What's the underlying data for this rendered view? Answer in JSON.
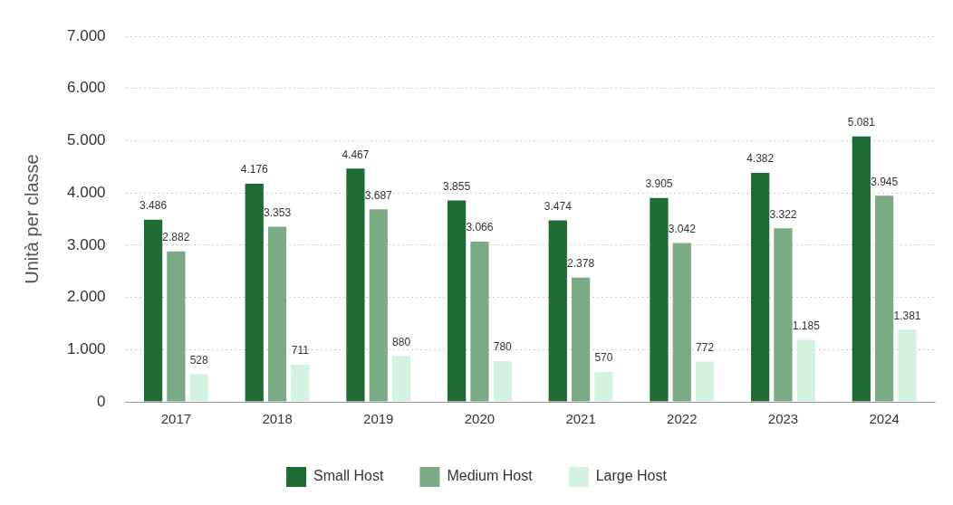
{
  "chart_data": {
    "type": "bar",
    "ylabel": "Unità per classe",
    "categories": [
      "2017",
      "2018",
      "2019",
      "2020",
      "2021",
      "2022",
      "2023",
      "2024"
    ],
    "series": [
      {
        "name": "Small Host",
        "color": "#1e6b34",
        "values": [
          3486,
          4176,
          4467,
          3855,
          3474,
          3905,
          4382,
          5081
        ],
        "value_labels": [
          "3.486",
          "4.176",
          "4.467",
          "3.855",
          "3.474",
          "3.905",
          "4.382",
          "5.081"
        ]
      },
      {
        "name": "Medium Host",
        "color": "#7aab84",
        "values": [
          2882,
          3353,
          3687,
          3066,
          2378,
          3042,
          3322,
          3945
        ],
        "value_labels": [
          "2.882",
          "3.353",
          "3.687",
          "3.066",
          "2.378",
          "3.042",
          "3.322",
          "3.945"
        ]
      },
      {
        "name": "Large Host",
        "color": "#d3f2e0",
        "values": [
          528,
          711,
          880,
          780,
          570,
          772,
          1185,
          1381
        ],
        "value_labels": [
          "528",
          "711",
          "880",
          "780",
          "570",
          "772",
          "1.185",
          "1.381"
        ]
      }
    ],
    "ylim": [
      0,
      7000
    ],
    "yticks": [
      0,
      {
        "value": 1000,
        "label": "1.000"
      },
      {
        "value": 2000,
        "label": "2.000"
      },
      {
        "value": 3000,
        "label": "3.000"
      },
      {
        "value": 4000,
        "label": "4.000"
      },
      {
        "value": 5000,
        "label": "5.000"
      },
      {
        "value": 6000,
        "label": "6.000"
      },
      {
        "value": 7000,
        "label": "7.000"
      }
    ],
    "grid": "y",
    "legend": "bottom"
  }
}
